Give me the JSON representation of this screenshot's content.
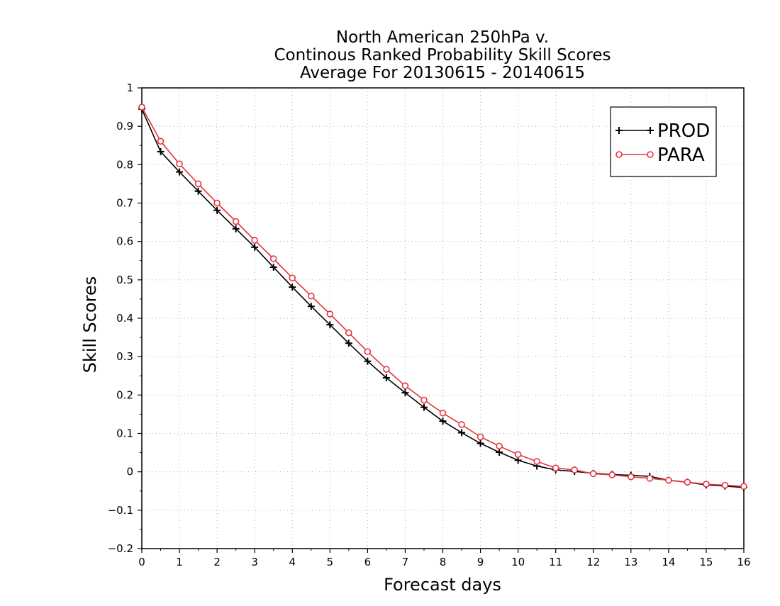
{
  "chart_data": {
    "type": "line",
    "title_lines": [
      "North American 250hPa v.",
      "Continous Ranked Probability Skill Scores",
      "Average For 20130615 - 20140615"
    ],
    "xlabel": "Forecast days",
    "ylabel": "Skill Scores",
    "xlim": [
      0,
      16
    ],
    "ylim": [
      -0.2,
      1
    ],
    "xticks": [
      0,
      1,
      2,
      3,
      4,
      5,
      6,
      7,
      8,
      9,
      10,
      11,
      12,
      13,
      14,
      15,
      16
    ],
    "yticks": [
      -0.2,
      -0.1,
      0,
      0.1,
      0.2,
      0.3,
      0.4,
      0.5,
      0.6,
      0.7,
      0.8,
      0.9,
      1
    ],
    "xtick_labels": [
      "0",
      "1",
      "2",
      "3",
      "4",
      "5",
      "6",
      "7",
      "8",
      "9",
      "10",
      "11",
      "12",
      "13",
      "14",
      "15",
      "16"
    ],
    "ytick_labels": [
      "−0.2",
      "−0.1",
      "0",
      "0.1",
      "0.2",
      "0.3",
      "0.4",
      "0.5",
      "0.6",
      "0.7",
      "0.8",
      "0.9",
      "1"
    ],
    "grid": true,
    "legend_position": "top-right",
    "x": [
      0,
      0.5,
      1,
      1.5,
      2,
      2.5,
      3,
      3.5,
      4,
      4.5,
      5,
      5.5,
      6,
      6.5,
      7,
      7.5,
      8,
      8.5,
      9,
      9.5,
      10,
      10.5,
      11,
      11.5,
      12,
      12.5,
      13,
      13.5,
      14,
      14.5,
      15,
      15.5,
      16
    ],
    "series": [
      {
        "name": "PROD",
        "color": "#000000",
        "marker": "plus",
        "values": [
          0.945,
          0.834,
          0.781,
          0.731,
          0.681,
          0.633,
          0.585,
          0.533,
          0.481,
          0.431,
          0.383,
          0.335,
          0.288,
          0.245,
          0.206,
          0.168,
          0.132,
          0.102,
          0.074,
          0.051,
          0.03,
          0.015,
          0.005,
          0.001,
          -0.004,
          -0.007,
          -0.009,
          -0.012,
          -0.022,
          -0.027,
          -0.034,
          -0.037,
          -0.041
        ]
      },
      {
        "name": "PARA",
        "color": "#e8333b",
        "marker": "circle",
        "values": [
          0.95,
          0.861,
          0.802,
          0.75,
          0.7,
          0.652,
          0.603,
          0.555,
          0.505,
          0.458,
          0.411,
          0.362,
          0.313,
          0.267,
          0.224,
          0.187,
          0.153,
          0.123,
          0.091,
          0.067,
          0.045,
          0.027,
          0.01,
          0.005,
          -0.005,
          -0.008,
          -0.013,
          -0.017,
          -0.022,
          -0.027,
          -0.032,
          -0.035,
          -0.038
        ]
      }
    ]
  }
}
